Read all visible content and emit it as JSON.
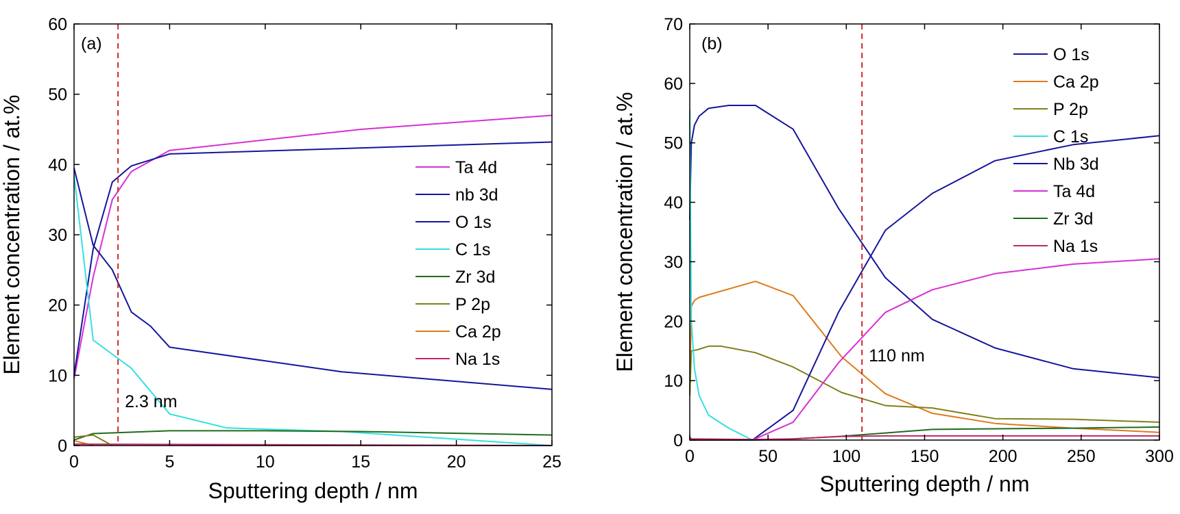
{
  "chart_data": [
    {
      "type": "line",
      "panel_label": "(a)",
      "xlabel": "Sputtering depth / nm",
      "ylabel": "Element concentration / at.%",
      "xlim": [
        0,
        25
      ],
      "ylim": [
        0,
        60
      ],
      "xticks": [
        0,
        5,
        10,
        15,
        20,
        25
      ],
      "yticks": [
        0,
        10,
        20,
        30,
        40,
        50,
        60
      ],
      "grid": false,
      "legend_position": "right-middle",
      "marker_line": {
        "x": 2.3,
        "label": "2.3 nm",
        "color": "#d62728"
      },
      "series": [
        {
          "name": "Ta 4d",
          "color": "#d62fd4",
          "x": [
            0,
            1,
            2,
            3,
            5,
            15,
            25
          ],
          "y": [
            9.5,
            24,
            35,
            39,
            42,
            45,
            47
          ]
        },
        {
          "name": "nb 3d",
          "color": "#14149c",
          "x": [
            0,
            1,
            2,
            3,
            5,
            25
          ],
          "y": [
            10,
            28,
            37.5,
            39.8,
            41.5,
            43.2
          ]
        },
        {
          "name": "O 1s",
          "color": "#14149c",
          "x": [
            0,
            1,
            2,
            3,
            4,
            5,
            14,
            25
          ],
          "y": [
            39.5,
            28.5,
            25,
            19,
            17,
            14,
            10.5,
            8
          ]
        },
        {
          "name": "C 1s",
          "color": "#33e0e0",
          "x": [
            0,
            1,
            2,
            3,
            5,
            8,
            14,
            25
          ],
          "y": [
            38.5,
            15,
            13,
            11,
            4.5,
            2.5,
            2,
            0
          ]
        },
        {
          "name": "Zr 3d",
          "color": "#1e6b1e",
          "x": [
            0,
            1,
            5,
            10,
            15,
            25
          ],
          "y": [
            0.8,
            1.7,
            2.1,
            2.1,
            2.0,
            1.5
          ]
        },
        {
          "name": "P 2p",
          "color": "#7f7f1a",
          "x": [
            0,
            1,
            2
          ],
          "y": [
            1.2,
            1.5,
            0
          ]
        },
        {
          "name": "Ca 2p",
          "color": "#e07a1a",
          "x": [
            0,
            1
          ],
          "y": [
            0.7,
            0
          ]
        },
        {
          "name": "Na 1s",
          "color": "#c0246a",
          "x": [
            0,
            25
          ],
          "y": [
            0.2,
            0
          ]
        }
      ]
    },
    {
      "type": "line",
      "panel_label": "(b)",
      "xlabel": "Sputtering depth / nm",
      "ylabel": "Element concentration / at.%",
      "xlim": [
        0,
        300
      ],
      "ylim": [
        0,
        70
      ],
      "xticks": [
        0,
        50,
        100,
        150,
        200,
        250,
        300
      ],
      "yticks": [
        0,
        10,
        20,
        30,
        40,
        50,
        60,
        70
      ],
      "grid": false,
      "legend_position": "top-right",
      "marker_line": {
        "x": 110,
        "label": "110 nm",
        "color": "#d62728"
      },
      "series": [
        {
          "name": "O 1s",
          "color": "#14149c",
          "x": [
            0,
            1,
            3,
            6,
            12,
            25,
            42,
            66,
            95,
            125,
            155,
            195,
            245,
            300
          ],
          "y": [
            37,
            50,
            53,
            54.5,
            55.8,
            56.3,
            56.3,
            52.3,
            39,
            27.3,
            20.3,
            15.5,
            12,
            10.5
          ]
        },
        {
          "name": "Ca 2p",
          "color": "#e07a1a",
          "x": [
            0,
            1,
            3,
            6,
            42,
            66,
            97,
            125,
            155,
            195,
            245,
            300
          ],
          "y": [
            8,
            22.5,
            23.5,
            24,
            26.7,
            24.3,
            14,
            7.8,
            4.5,
            2.8,
            2,
            1.3
          ]
        },
        {
          "name": "P 2p",
          "color": "#7f7f1a",
          "x": [
            0,
            1,
            5,
            12,
            20,
            42,
            66,
            97,
            125,
            155,
            195,
            245,
            300
          ],
          "y": [
            7.5,
            15,
            15.2,
            15.8,
            15.8,
            14.7,
            12.3,
            8,
            5.8,
            5.4,
            3.6,
            3.5,
            3
          ]
        },
        {
          "name": "C 1s",
          "color": "#33e0e0",
          "x": [
            0,
            1,
            3,
            6,
            12,
            25,
            40
          ],
          "y": [
            55.5,
            20,
            12,
            7.5,
            4.2,
            2,
            0
          ]
        },
        {
          "name": "Nb 3d",
          "color": "#14149c",
          "x": [
            0,
            40,
            66,
            95,
            125,
            155,
            195,
            245,
            300
          ],
          "y": [
            0,
            0,
            5,
            21.5,
            35.3,
            41.5,
            47,
            49.7,
            51.2
          ]
        },
        {
          "name": "Ta 4d",
          "color": "#d62fd4",
          "x": [
            0,
            40,
            66,
            95,
            125,
            155,
            195,
            245,
            300
          ],
          "y": [
            0,
            0,
            3,
            13,
            21.5,
            25.3,
            28,
            29.6,
            30.5
          ]
        },
        {
          "name": "Zr 3d",
          "color": "#1e6b1e",
          "x": [
            0,
            40,
            66,
            95,
            125,
            155,
            195,
            245,
            300
          ],
          "y": [
            0,
            0,
            0.2,
            0.6,
            1.2,
            1.8,
            1.9,
            2,
            2.2
          ]
        },
        {
          "name": "Na 1s",
          "color": "#c0246a",
          "x": [
            0,
            1,
            40,
            66,
            95,
            125,
            155,
            195,
            245,
            300
          ],
          "y": [
            0.5,
            0.2,
            0.1,
            0.2,
            0.6,
            0.7,
            0.7,
            0.7,
            0.7,
            0.7
          ]
        }
      ]
    }
  ]
}
